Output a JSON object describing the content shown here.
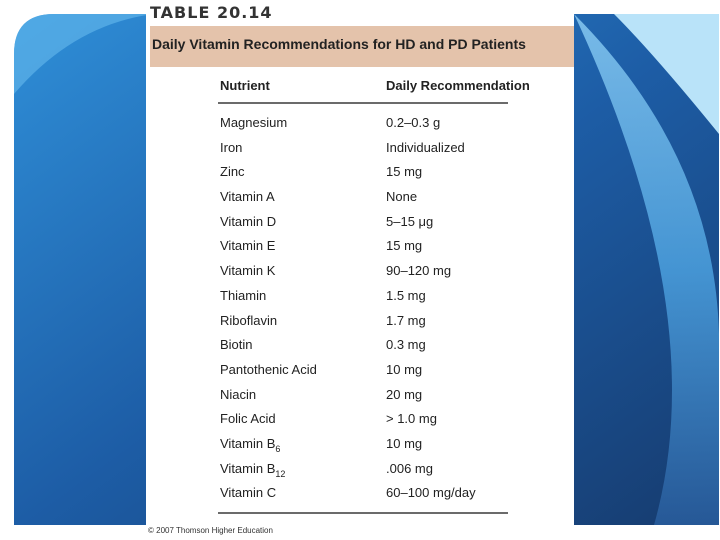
{
  "table": {
    "number": "TABLE 20.14",
    "title": "Daily Vitamin Recommendations for HD and PD Patients",
    "columns": {
      "nutrient": "Nutrient",
      "recommendation": "Daily Recommendation"
    },
    "rows": [
      {
        "nutrient": "Magnesium",
        "recommendation": "0.2–0.3 g"
      },
      {
        "nutrient": "Iron",
        "recommendation": "Individualized"
      },
      {
        "nutrient": "Zinc",
        "recommendation": "15 mg"
      },
      {
        "nutrient": "Vitamin A",
        "recommendation": "None"
      },
      {
        "nutrient": "Vitamin D",
        "recommendation": "5–15 μg"
      },
      {
        "nutrient": "Vitamin E",
        "recommendation": "15 mg"
      },
      {
        "nutrient": "Vitamin K",
        "recommendation": "90–120 mg"
      },
      {
        "nutrient": "Thiamin",
        "recommendation": "1.5 mg"
      },
      {
        "nutrient": "Riboflavin",
        "recommendation": "1.7 mg"
      },
      {
        "nutrient": "Biotin",
        "recommendation": "0.3 mg"
      },
      {
        "nutrient": "Pantothenic Acid",
        "recommendation": "10 mg"
      },
      {
        "nutrient": "Niacin",
        "recommendation": "20 mg"
      },
      {
        "nutrient": "Folic Acid",
        "recommendation": "> 1.0 mg"
      },
      {
        "nutrient": "Vitamin B",
        "subscript": "6",
        "recommendation": "10 mg"
      },
      {
        "nutrient": "Vitamin B",
        "subscript": "12",
        "recommendation": ".006 mg"
      },
      {
        "nutrient": "Vitamin C",
        "recommendation": "60–100 mg/day"
      }
    ],
    "copyright": "© 2007 Thomson Higher Education"
  },
  "colors": {
    "title_bar": "#e4c3ab",
    "background_dark": "#1c4a86",
    "background_mid": "#2e7fd1",
    "background_light": "#7fc6f2"
  }
}
